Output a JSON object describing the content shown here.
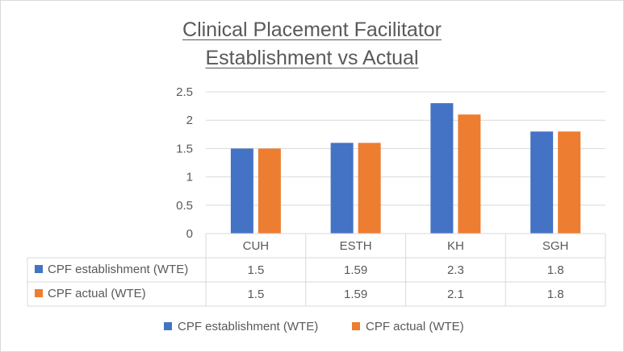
{
  "chart_data": {
    "type": "bar",
    "title": [
      "Clinical Placement Facilitator",
      "Establishment vs Actual"
    ],
    "categories": [
      "CUH",
      "ESTH",
      "KH",
      "SGH"
    ],
    "series": [
      {
        "name": "CPF establishment (WTE)",
        "color": "#4472c4",
        "values": [
          1.5,
          1.6,
          2.3,
          1.8
        ],
        "table_labels": [
          "1.5",
          "1.59",
          "2.3",
          "1.8"
        ]
      },
      {
        "name": "CPF actual (WTE)",
        "color": "#ed7d31",
        "values": [
          1.5,
          1.6,
          2.1,
          1.8
        ],
        "table_labels": [
          "1.5",
          "1.59",
          "2.1",
          "1.8"
        ]
      }
    ],
    "yticks": [
      "0",
      "0.5",
      "1",
      "1.5",
      "2",
      "2.5"
    ],
    "ylim": [
      0,
      2.5
    ],
    "grid": true,
    "data_table": true,
    "legend_position": "bottom"
  }
}
